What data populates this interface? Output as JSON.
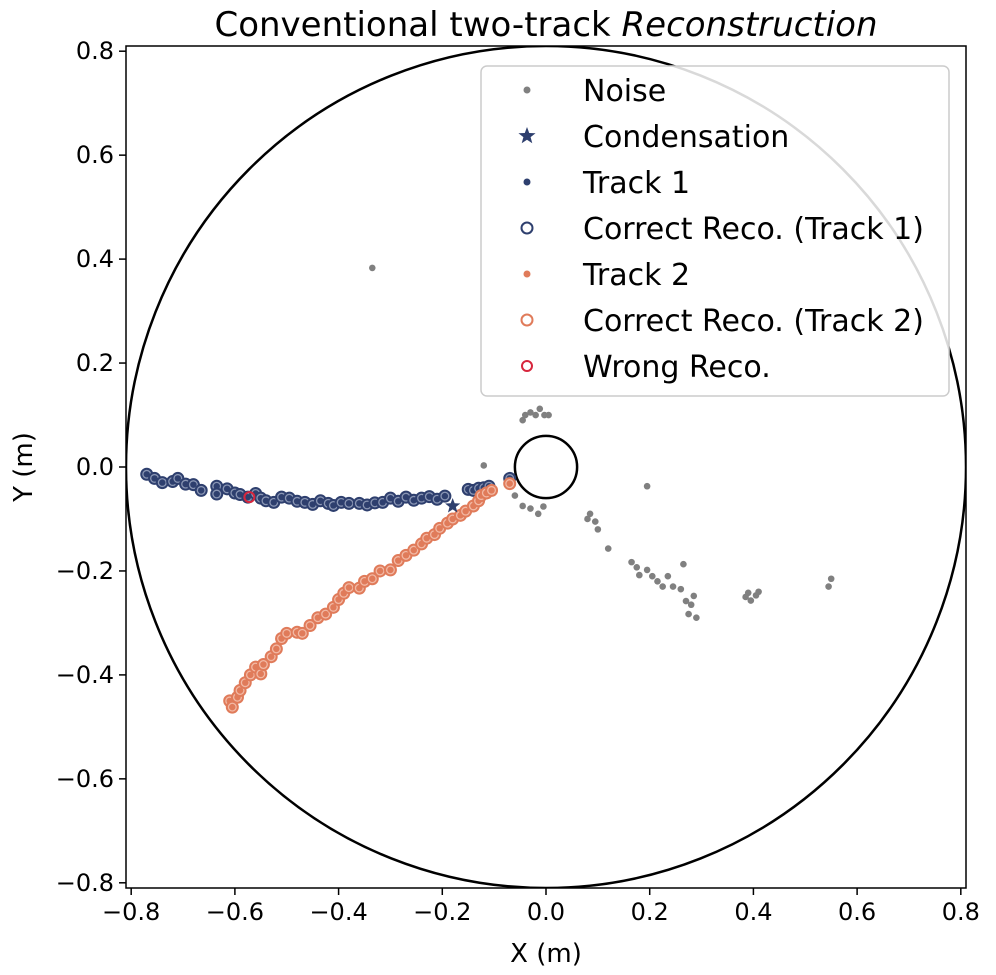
{
  "chart_data": {
    "type": "scatter",
    "title": {
      "prefix": "Conventional two-track ",
      "italic": "Reconstruction"
    },
    "xlabel": "X (m)",
    "ylabel": "Y (m)",
    "xlim": [
      -0.81,
      0.81
    ],
    "ylim": [
      -0.81,
      0.81
    ],
    "xticks": [
      -0.8,
      -0.6,
      -0.4,
      -0.2,
      0.0,
      0.2,
      0.4,
      0.6,
      0.8
    ],
    "yticks": [
      -0.8,
      -0.6,
      -0.4,
      -0.2,
      0.0,
      0.2,
      0.4,
      0.6,
      0.8
    ],
    "xtick_labels": [
      "−0.8",
      "−0.6",
      "−0.4",
      "−0.2",
      "0.0",
      "0.2",
      "0.4",
      "0.6",
      "0.8"
    ],
    "ytick_labels": [
      "−0.8",
      "−0.6",
      "−0.4",
      "−0.2",
      "0.0",
      "0.2",
      "0.4",
      "0.6",
      "0.8"
    ],
    "grid": false,
    "legend_position": "top-right",
    "colors": {
      "noise": "#808080",
      "track1": "#2e3f6e",
      "track2": "#e07b5a",
      "wrong": "#d7263d",
      "circle": "#000000"
    },
    "circles": [
      {
        "name": "outer-detector",
        "cx": 0.0,
        "cy": 0.0,
        "r": 0.81
      },
      {
        "name": "inner-detector",
        "cx": 0.0,
        "cy": 0.0,
        "r": 0.06
      }
    ],
    "legend": [
      {
        "key": "noise",
        "label": "Noise"
      },
      {
        "key": "condensation",
        "label": "Condensation"
      },
      {
        "key": "track1",
        "label": "Track 1"
      },
      {
        "key": "correct1",
        "label": "Correct Reco. (Track 1)"
      },
      {
        "key": "track2",
        "label": "Track 2"
      },
      {
        "key": "correct2",
        "label": "Correct Reco. (Track 2)"
      },
      {
        "key": "wrong",
        "label": "Wrong Reco."
      }
    ],
    "series": [
      {
        "name": "Noise",
        "points": [
          [
            -0.335,
            0.383
          ],
          [
            -0.045,
            0.09
          ],
          [
            -0.04,
            0.1
          ],
          [
            -0.03,
            0.105
          ],
          [
            -0.02,
            0.1
          ],
          [
            -0.012,
            0.112
          ],
          [
            -0.003,
            0.1
          ],
          [
            0.005,
            0.1
          ],
          [
            -0.12,
            0.003
          ],
          [
            -0.03,
            -0.08
          ],
          [
            -0.015,
            -0.09
          ],
          [
            -0.005,
            -0.076
          ],
          [
            -0.045,
            -0.075
          ],
          [
            -0.06,
            -0.055
          ],
          [
            0.08,
            -0.1
          ],
          [
            0.085,
            -0.09
          ],
          [
            0.1,
            -0.12
          ],
          [
            0.095,
            -0.105
          ],
          [
            0.12,
            -0.157
          ],
          [
            0.165,
            -0.183
          ],
          [
            0.175,
            -0.193
          ],
          [
            0.18,
            -0.208
          ],
          [
            0.195,
            -0.198
          ],
          [
            0.205,
            -0.21
          ],
          [
            0.215,
            -0.22
          ],
          [
            0.225,
            -0.23
          ],
          [
            0.235,
            -0.21
          ],
          [
            0.245,
            -0.23
          ],
          [
            0.26,
            -0.235
          ],
          [
            0.265,
            -0.187
          ],
          [
            0.27,
            -0.258
          ],
          [
            0.275,
            -0.283
          ],
          [
            0.28,
            -0.265
          ],
          [
            0.285,
            -0.248
          ],
          [
            0.29,
            -0.29
          ],
          [
            0.195,
            -0.037
          ],
          [
            0.385,
            -0.25
          ],
          [
            0.39,
            -0.242
          ],
          [
            0.395,
            -0.257
          ],
          [
            0.405,
            -0.247
          ],
          [
            0.41,
            -0.24
          ],
          [
            0.545,
            -0.23
          ],
          [
            0.55,
            -0.215
          ]
        ]
      },
      {
        "name": "Condensation",
        "points": [
          [
            -0.18,
            -0.075
          ]
        ]
      },
      {
        "name": "Track 1",
        "points": [
          [
            -0.77,
            -0.014
          ],
          [
            -0.755,
            -0.022
          ],
          [
            -0.74,
            -0.03
          ],
          [
            -0.72,
            -0.028
          ],
          [
            -0.71,
            -0.022
          ],
          [
            -0.695,
            -0.033
          ],
          [
            -0.68,
            -0.034
          ],
          [
            -0.665,
            -0.045
          ],
          [
            -0.635,
            -0.037
          ],
          [
            -0.635,
            -0.052
          ],
          [
            -0.615,
            -0.042
          ],
          [
            -0.6,
            -0.05
          ],
          [
            -0.59,
            -0.053
          ],
          [
            -0.575,
            -0.058
          ],
          [
            -0.56,
            -0.051
          ],
          [
            -0.55,
            -0.06
          ],
          [
            -0.54,
            -0.065
          ],
          [
            -0.525,
            -0.068
          ],
          [
            -0.51,
            -0.058
          ],
          [
            -0.495,
            -0.06
          ],
          [
            -0.48,
            -0.066
          ],
          [
            -0.465,
            -0.068
          ],
          [
            -0.45,
            -0.072
          ],
          [
            -0.435,
            -0.065
          ],
          [
            -0.42,
            -0.07
          ],
          [
            -0.41,
            -0.074
          ],
          [
            -0.395,
            -0.068
          ],
          [
            -0.38,
            -0.07
          ],
          [
            -0.36,
            -0.07
          ],
          [
            -0.345,
            -0.073
          ],
          [
            -0.33,
            -0.069
          ],
          [
            -0.315,
            -0.068
          ],
          [
            -0.3,
            -0.06
          ],
          [
            -0.285,
            -0.066
          ],
          [
            -0.27,
            -0.058
          ],
          [
            -0.255,
            -0.064
          ],
          [
            -0.24,
            -0.06
          ],
          [
            -0.225,
            -0.057
          ],
          [
            -0.21,
            -0.062
          ],
          [
            -0.195,
            -0.056
          ],
          [
            -0.15,
            -0.043
          ],
          [
            -0.14,
            -0.045
          ],
          [
            -0.13,
            -0.041
          ],
          [
            -0.12,
            -0.04
          ],
          [
            -0.11,
            -0.037
          ],
          [
            -0.07,
            -0.022
          ]
        ]
      },
      {
        "name": "Track 2",
        "points": [
          [
            -0.61,
            -0.45
          ],
          [
            -0.605,
            -0.462
          ],
          [
            -0.595,
            -0.443
          ],
          [
            -0.59,
            -0.43
          ],
          [
            -0.58,
            -0.415
          ],
          [
            -0.57,
            -0.4
          ],
          [
            -0.56,
            -0.385
          ],
          [
            -0.55,
            -0.398
          ],
          [
            -0.545,
            -0.38
          ],
          [
            -0.53,
            -0.365
          ],
          [
            -0.52,
            -0.35
          ],
          [
            -0.51,
            -0.33
          ],
          [
            -0.5,
            -0.32
          ],
          [
            -0.48,
            -0.318
          ],
          [
            -0.47,
            -0.32
          ],
          [
            -0.455,
            -0.305
          ],
          [
            -0.44,
            -0.29
          ],
          [
            -0.425,
            -0.283
          ],
          [
            -0.41,
            -0.27
          ],
          [
            -0.4,
            -0.255
          ],
          [
            -0.39,
            -0.243
          ],
          [
            -0.38,
            -0.232
          ],
          [
            -0.36,
            -0.233
          ],
          [
            -0.35,
            -0.22
          ],
          [
            -0.335,
            -0.215
          ],
          [
            -0.32,
            -0.2
          ],
          [
            -0.3,
            -0.198
          ],
          [
            -0.285,
            -0.18
          ],
          [
            -0.27,
            -0.17
          ],
          [
            -0.255,
            -0.16
          ],
          [
            -0.24,
            -0.148
          ],
          [
            -0.23,
            -0.137
          ],
          [
            -0.215,
            -0.13
          ],
          [
            -0.205,
            -0.118
          ],
          [
            -0.19,
            -0.108
          ],
          [
            -0.18,
            -0.1
          ],
          [
            -0.165,
            -0.093
          ],
          [
            -0.155,
            -0.085
          ],
          [
            -0.14,
            -0.075
          ],
          [
            -0.13,
            -0.065
          ],
          [
            -0.125,
            -0.055
          ],
          [
            -0.115,
            -0.05
          ],
          [
            -0.105,
            -0.045
          ],
          [
            -0.07,
            -0.032
          ]
        ]
      },
      {
        "name": "Wrong Reco.",
        "points": [
          [
            -0.572,
            -0.058
          ]
        ]
      }
    ]
  }
}
